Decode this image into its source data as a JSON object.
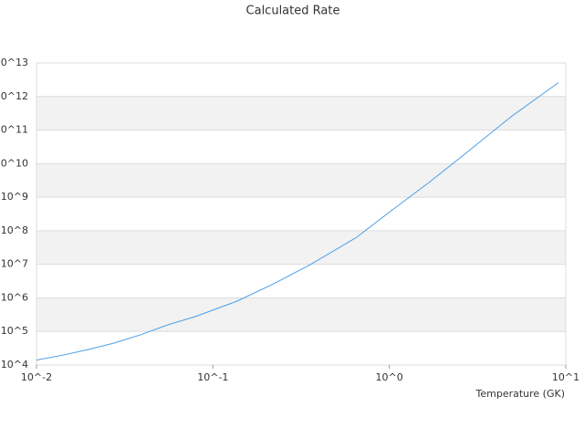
{
  "chart_data": {
    "type": "line",
    "title": "Calculated Rate",
    "x_label": "Temperature (GK)",
    "log_x": true,
    "log_y": true,
    "grid": true,
    "xlim": [
      0.01,
      10
    ],
    "ylim": [
      10000,
      10000000000000
    ],
    "xticks": [
      {
        "value": 0.01,
        "label": "10^-2"
      },
      {
        "value": 0.1,
        "label": "10^-1"
      },
      {
        "value": 1,
        "label": "10^0"
      },
      {
        "value": 10,
        "label": "10^1"
      }
    ],
    "yticks": [
      {
        "value": 10000,
        "label": "10^4"
      },
      {
        "value": 100000,
        "label": "10^5"
      },
      {
        "value": 1000000,
        "label": "10^6"
      },
      {
        "value": 10000000,
        "label": "10^7"
      },
      {
        "value": 100000000,
        "label": "10^8"
      },
      {
        "value": 1000000000,
        "label": "10^9"
      },
      {
        "value": 10000000000,
        "label": "10^10"
      },
      {
        "value": 100000000000,
        "label": "10^11"
      },
      {
        "value": 1000000000000,
        "label": "10^12"
      },
      {
        "value": 10000000000000,
        "label": "10^13"
      }
    ],
    "x": [
      0.01,
      0.0143,
      0.0197,
      0.0275,
      0.039,
      0.056,
      0.08,
      0.137,
      0.22,
      0.357,
      0.65,
      1.04,
      1.67,
      2.7,
      4.9,
      9.1
    ],
    "series": [
      {
        "color": "#4a9ee8",
        "values": [
          14000,
          20000,
          29000,
          45000,
          80000,
          160000,
          280000,
          800000,
          2600000,
          9800000,
          63000000,
          420000000,
          2700000000,
          20000000000,
          250000000000,
          2600000000000
        ]
      }
    ]
  }
}
